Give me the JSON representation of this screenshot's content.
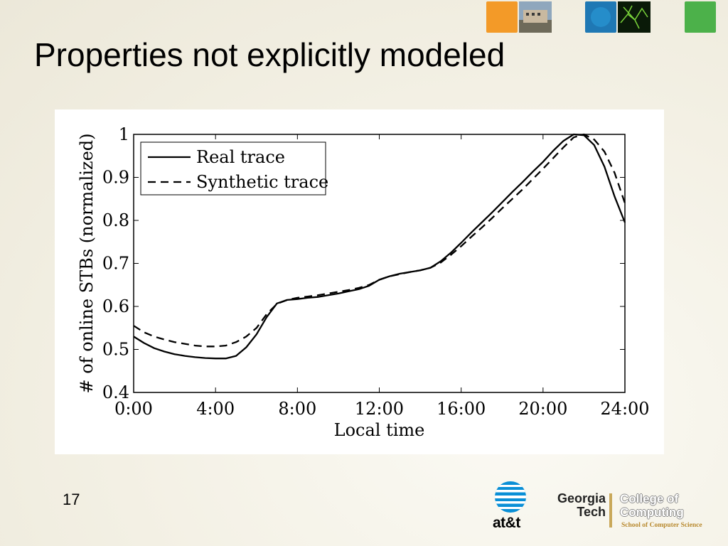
{
  "slide": {
    "title": "Properties not explicitly modeled",
    "page_number": "17"
  },
  "logos": {
    "att": "at&t",
    "georgia_tech_line1": "Georgia",
    "georgia_tech_line2": "Tech",
    "college_line1": "College of",
    "college_line2": "Computing",
    "school": "School of Computer Science"
  },
  "colors": {
    "thumb_orange": "#f39a28",
    "thumb_blue": "#1f78b4",
    "thumb_green": "#4cb14a"
  },
  "chart_data": {
    "type": "line",
    "xlabel": "Local time",
    "ylabel": "# of online STBs (normalized)",
    "xlim": [
      0,
      24
    ],
    "ylim": [
      0.4,
      1.0
    ],
    "x_ticks": [
      0,
      4,
      8,
      12,
      16,
      20,
      24
    ],
    "x_tick_labels": [
      "0:00",
      "4:00",
      "8:00",
      "12:00",
      "16:00",
      "20:00",
      "24:00"
    ],
    "y_ticks": [
      0.4,
      0.5,
      0.6,
      0.7,
      0.8,
      0.9,
      1.0
    ],
    "y_tick_labels": [
      "0.4",
      "0.5",
      "0.6",
      "0.7",
      "0.8",
      "0.9",
      "1"
    ],
    "legend_position": "top-left",
    "grid": false,
    "series": [
      {
        "name": "Real trace",
        "style": "solid",
        "x": [
          0,
          0.5,
          1,
          1.5,
          2,
          2.5,
          3,
          3.5,
          4,
          4.5,
          5,
          5.5,
          6,
          6.5,
          7,
          7.5,
          8,
          8.5,
          9,
          9.5,
          10,
          10.5,
          11,
          11.5,
          12,
          12.5,
          13,
          13.5,
          14,
          14.5,
          15,
          15.5,
          16,
          16.5,
          17,
          17.5,
          18,
          18.5,
          19,
          19.5,
          20,
          20.5,
          21,
          21.5,
          22,
          22.5,
          23,
          23.5,
          24
        ],
        "y": [
          0.53,
          0.515,
          0.503,
          0.495,
          0.489,
          0.485,
          0.482,
          0.48,
          0.479,
          0.479,
          0.485,
          0.505,
          0.535,
          0.575,
          0.607,
          0.615,
          0.617,
          0.62,
          0.622,
          0.626,
          0.63,
          0.635,
          0.64,
          0.648,
          0.662,
          0.67,
          0.676,
          0.68,
          0.684,
          0.69,
          0.705,
          0.725,
          0.748,
          0.772,
          0.795,
          0.818,
          0.842,
          0.866,
          0.889,
          0.913,
          0.936,
          0.962,
          0.985,
          1.0,
          0.998,
          0.975,
          0.925,
          0.855,
          0.795
        ]
      },
      {
        "name": "Synthetic trace",
        "style": "dashed",
        "x": [
          0,
          0.5,
          1,
          1.5,
          2,
          2.5,
          3,
          3.5,
          4,
          4.5,
          5,
          5.5,
          6,
          6.5,
          7,
          7.5,
          8,
          8.5,
          9,
          9.5,
          10,
          10.5,
          11,
          11.5,
          12,
          12.5,
          13,
          13.5,
          14,
          14.5,
          15,
          15.5,
          16,
          16.5,
          17,
          17.5,
          18,
          18.5,
          19,
          19.5,
          20,
          20.5,
          21,
          21.5,
          22,
          22.5,
          23,
          23.5,
          24
        ],
        "y": [
          0.555,
          0.54,
          0.53,
          0.523,
          0.517,
          0.513,
          0.509,
          0.507,
          0.507,
          0.509,
          0.517,
          0.53,
          0.55,
          0.582,
          0.606,
          0.615,
          0.62,
          0.623,
          0.626,
          0.63,
          0.634,
          0.638,
          0.643,
          0.65,
          0.662,
          0.67,
          0.675,
          0.68,
          0.684,
          0.69,
          0.702,
          0.72,
          0.74,
          0.762,
          0.783,
          0.805,
          0.828,
          0.85,
          0.872,
          0.896,
          0.92,
          0.945,
          0.97,
          0.993,
          1.0,
          0.988,
          0.96,
          0.91,
          0.84
        ]
      }
    ]
  }
}
